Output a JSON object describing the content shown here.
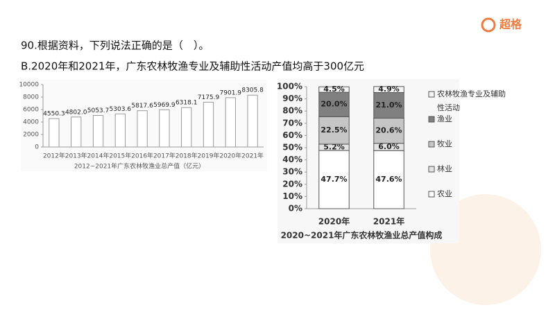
{
  "brand": "超格",
  "question": "90.根据资料，下列说法正确的是（　）。",
  "option": "B.2020年和2021年，广东农林牧渔专业及辅助性活动产值均高于300亿元",
  "chart_data": [
    {
      "type": "bar",
      "title": "2012~2021年广东农林牧渔业总产值（亿元）",
      "categories": [
        "2012年",
        "2013年",
        "2014年",
        "2015年",
        "2016年",
        "2017年",
        "2018年",
        "2019年",
        "2020年",
        "2021年"
      ],
      "values": [
        4550.3,
        4802.0,
        5053.7,
        5303.6,
        5817.6,
        5969.9,
        6318.1,
        7175.9,
        7901.9,
        8305.8
      ],
      "value_labels": [
        "4550.3",
        "4802.0",
        "5053.7",
        "5303.6",
        "5817.6",
        "5969.9",
        "6318.1",
        "7175.9",
        "7901.9",
        "8305.8"
      ],
      "color": "#ffffff",
      "edgecolor": "#9a9a9a",
      "ylim": [
        0,
        10000
      ],
      "yticks": [
        0,
        2000,
        4000,
        6000,
        8000,
        10000
      ]
    },
    {
      "type": "bar",
      "stacked": true,
      "title": "2020~2021年广东农林牧渔业总产值构成",
      "categories": [
        "2020年",
        "2021年"
      ],
      "series": [
        {
          "name": "农业",
          "color": "#ffffff",
          "values": [
            47.7,
            47.6
          ],
          "value_labels": [
            "47.7%",
            "47.6%"
          ]
        },
        {
          "name": "林业",
          "color": "#e4e4e4",
          "values": [
            5.2,
            6.0
          ],
          "value_labels": [
            "5.2%",
            "6.0%"
          ]
        },
        {
          "name": "牧业",
          "color": "#c6c6c6",
          "values": [
            22.5,
            20.6
          ],
          "value_labels": [
            "22.5%",
            "20.6%"
          ]
        },
        {
          "name": "渔业",
          "color": "#808080",
          "values": [
            20.0,
            21.0
          ],
          "value_labels": [
            "20.0%",
            "21.0%"
          ]
        },
        {
          "name": "农林牧渔专业及辅助性活动",
          "color": "#f4f4f4",
          "values": [
            4.5,
            4.9
          ],
          "value_labels": [
            "4.5%",
            "4.9%"
          ]
        }
      ],
      "ylim": [
        0,
        100
      ],
      "yticks": [
        {
          "value": 0,
          "label": "0%"
        },
        {
          "value": 10,
          "label": "10%"
        },
        {
          "value": 20,
          "label": "20%"
        },
        {
          "value": 30,
          "label": "30%"
        },
        {
          "value": 40,
          "label": "40%"
        },
        {
          "value": 50,
          "label": "50%"
        },
        {
          "value": 60,
          "label": "60%"
        },
        {
          "value": 70,
          "label": "70%"
        },
        {
          "value": 80,
          "label": "80%"
        },
        {
          "value": 90,
          "label": "90%"
        },
        {
          "value": 100,
          "label": "100%"
        }
      ],
      "legend": "right"
    }
  ]
}
